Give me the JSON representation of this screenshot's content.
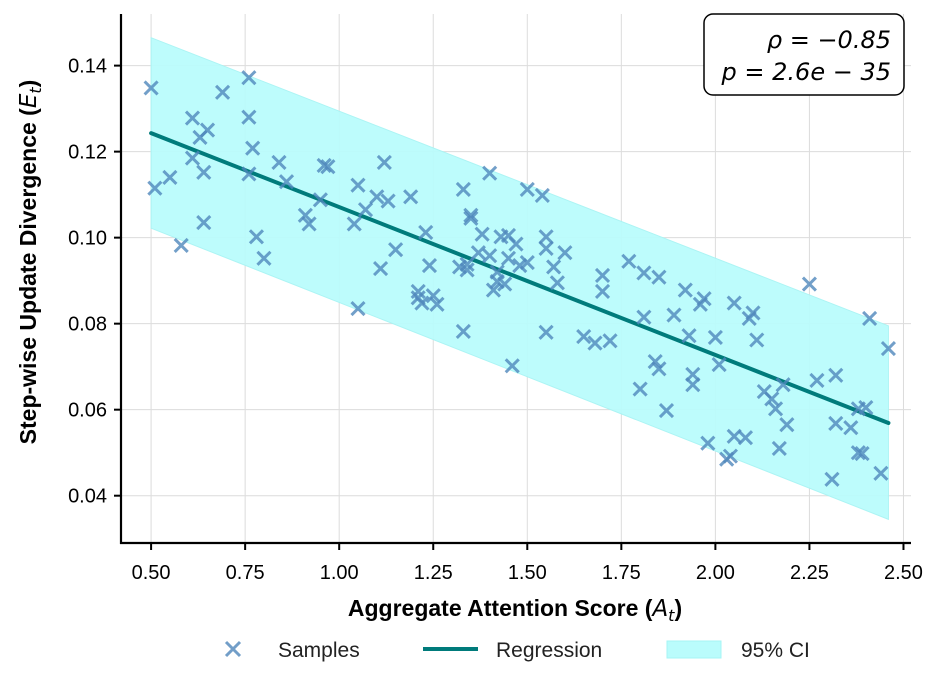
{
  "chart_data": {
    "type": "scatter",
    "xlabel": "Aggregate Attention Score (A_t)",
    "xlabel_main": "Aggregate Attention Score (",
    "xlabel_sym": "A",
    "xlabel_sub": "t",
    "xlabel_end": ")",
    "ylabel": "Step-wise Update Divergence (E_t)",
    "ylabel_main": "Step-wise Update Divergence (",
    "ylabel_sym": "E",
    "ylabel_sub": "t",
    "ylabel_end": ")",
    "xlim": [
      0.42,
      2.52
    ],
    "ylim": [
      0.029,
      0.152
    ],
    "xticks": [
      0.5,
      0.75,
      1.0,
      1.25,
      1.5,
      1.75,
      2.0,
      2.25,
      2.5
    ],
    "xtick_labels": [
      "0.50",
      "0.75",
      "1.00",
      "1.25",
      "1.50",
      "1.75",
      "2.00",
      "2.25",
      "2.50"
    ],
    "yticks": [
      0.04,
      0.06,
      0.08,
      0.1,
      0.12,
      0.14
    ],
    "ytick_labels": [
      "0.04",
      "0.06",
      "0.08",
      "0.10",
      "0.12",
      "0.14"
    ],
    "grid": true,
    "annotation": {
      "line1": "ρ = −0.85",
      "line2": "p = 2.6e − 35",
      "placement": "top-right"
    },
    "regression": {
      "name": "Regression",
      "x": [
        0.5,
        2.46
      ],
      "y": [
        0.1243,
        0.0569
      ],
      "color": "#007b7b"
    },
    "ci": {
      "name": "95% CI",
      "x": [
        0.5,
        2.46
      ],
      "upper": [
        0.1465,
        0.0795
      ],
      "lower": [
        0.1022,
        0.0345
      ],
      "color": "#bafcfc"
    },
    "samples": {
      "name": "Samples",
      "color": "#4f87bb",
      "points": [
        [
          0.5,
          0.1348
        ],
        [
          0.51,
          0.1115
        ],
        [
          0.55,
          0.114
        ],
        [
          0.58,
          0.0982
        ],
        [
          0.61,
          0.1278
        ],
        [
          0.61,
          0.1185
        ],
        [
          0.63,
          0.1233
        ],
        [
          0.64,
          0.1035
        ],
        [
          0.64,
          0.1152
        ],
        [
          0.65,
          0.125
        ],
        [
          0.69,
          0.1338
        ],
        [
          0.76,
          0.1372
        ],
        [
          0.76,
          0.128
        ],
        [
          0.76,
          0.1148
        ],
        [
          0.77,
          0.1208
        ],
        [
          0.78,
          0.1002
        ],
        [
          0.8,
          0.0952
        ],
        [
          0.84,
          0.1175
        ],
        [
          0.86,
          0.113
        ],
        [
          0.91,
          0.1052
        ],
        [
          0.92,
          0.1032
        ],
        [
          0.95,
          0.1088
        ],
        [
          0.96,
          0.1168
        ],
        [
          0.97,
          0.1165
        ],
        [
          1.04,
          0.1032
        ],
        [
          1.05,
          0.1122
        ],
        [
          1.05,
          0.0835
        ],
        [
          1.07,
          0.1065
        ],
        [
          1.1,
          0.1095
        ],
        [
          1.11,
          0.0928
        ],
        [
          1.12,
          0.1175
        ],
        [
          1.13,
          0.1085
        ],
        [
          1.15,
          0.0972
        ],
        [
          1.19,
          0.1095
        ],
        [
          1.21,
          0.0875
        ],
        [
          1.21,
          0.086
        ],
        [
          1.22,
          0.0848
        ],
        [
          1.23,
          0.1012
        ],
        [
          1.24,
          0.0935
        ],
        [
          1.25,
          0.0865
        ],
        [
          1.26,
          0.0845
        ],
        [
          1.32,
          0.0932
        ],
        [
          1.33,
          0.1112
        ],
        [
          1.33,
          0.0782
        ],
        [
          1.34,
          0.0938
        ],
        [
          1.34,
          0.0925
        ],
        [
          1.35,
          0.1045
        ],
        [
          1.35,
          0.1052
        ],
        [
          1.37,
          0.0965
        ],
        [
          1.38,
          0.1008
        ],
        [
          1.4,
          0.115
        ],
        [
          1.4,
          0.0958
        ],
        [
          1.41,
          0.0878
        ],
        [
          1.42,
          0.0898
        ],
        [
          1.42,
          0.092
        ],
        [
          1.43,
          0.1002
        ],
        [
          1.44,
          0.0892
        ],
        [
          1.45,
          0.1005
        ],
        [
          1.45,
          0.0952
        ],
        [
          1.46,
          0.0702
        ],
        [
          1.47,
          0.0985
        ],
        [
          1.48,
          0.0935
        ],
        [
          1.5,
          0.1112
        ],
        [
          1.5,
          0.0942
        ],
        [
          1.54,
          0.1098
        ],
        [
          1.55,
          0.1002
        ],
        [
          1.55,
          0.0975
        ],
        [
          1.55,
          0.078
        ],
        [
          1.57,
          0.0932
        ],
        [
          1.58,
          0.0895
        ],
        [
          1.6,
          0.0965
        ],
        [
          1.65,
          0.077
        ],
        [
          1.68,
          0.0755
        ],
        [
          1.7,
          0.0875
        ],
        [
          1.7,
          0.0912
        ],
        [
          1.72,
          0.076
        ],
        [
          1.77,
          0.0945
        ],
        [
          1.8,
          0.0648
        ],
        [
          1.81,
          0.0918
        ],
        [
          1.81,
          0.0815
        ],
        [
          1.84,
          0.0712
        ],
        [
          1.85,
          0.0695
        ],
        [
          1.85,
          0.0908
        ],
        [
          1.87,
          0.0598
        ],
        [
          1.89,
          0.082
        ],
        [
          1.92,
          0.0878
        ],
        [
          1.93,
          0.0772
        ],
        [
          1.94,
          0.0658
        ],
        [
          1.94,
          0.0682
        ],
        [
          1.96,
          0.0845
        ],
        [
          1.97,
          0.0858
        ],
        [
          1.98,
          0.0522
        ],
        [
          2.0,
          0.0768
        ],
        [
          2.01,
          0.0705
        ],
        [
          2.03,
          0.0485
        ],
        [
          2.04,
          0.0492
        ],
        [
          2.05,
          0.0538
        ],
        [
          2.05,
          0.0848
        ],
        [
          2.08,
          0.0535
        ],
        [
          2.09,
          0.0812
        ],
        [
          2.1,
          0.0825
        ],
        [
          2.11,
          0.0762
        ],
        [
          2.13,
          0.0642
        ],
        [
          2.15,
          0.0625
        ],
        [
          2.16,
          0.0602
        ],
        [
          2.17,
          0.051
        ],
        [
          2.18,
          0.0658
        ],
        [
          2.19,
          0.0565
        ],
        [
          2.25,
          0.0892
        ],
        [
          2.27,
          0.0668
        ],
        [
          2.31,
          0.0438
        ],
        [
          2.32,
          0.0568
        ],
        [
          2.32,
          0.068
        ],
        [
          2.36,
          0.0558
        ],
        [
          2.38,
          0.0602
        ],
        [
          2.38,
          0.05
        ],
        [
          2.39,
          0.0498
        ],
        [
          2.4,
          0.0605
        ],
        [
          2.41,
          0.0812
        ],
        [
          2.44,
          0.0452
        ],
        [
          2.46,
          0.0742
        ]
      ]
    },
    "legend": {
      "placement": "bottom",
      "items": [
        "Samples",
        "Regression",
        "95% CI"
      ]
    }
  }
}
